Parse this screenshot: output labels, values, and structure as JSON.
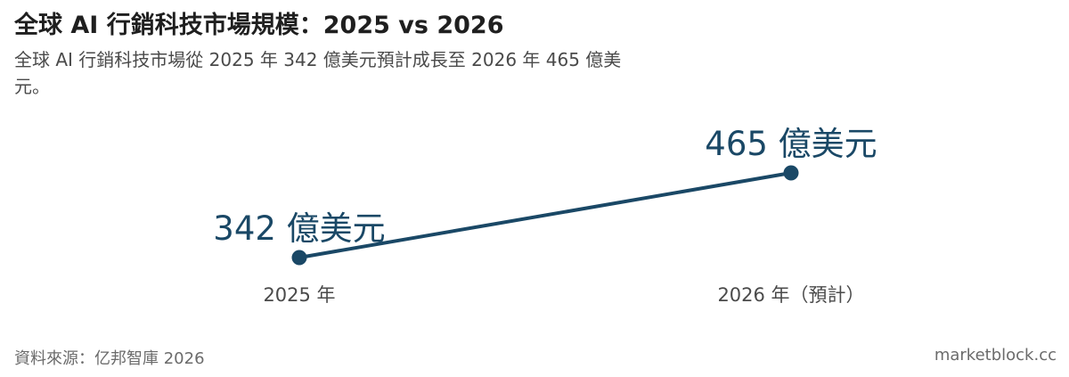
{
  "header": {
    "title": "全球 AI 行銷科技市場規模：2025 vs 2026",
    "subtitle": "全球 AI 行銷科技市場從 2025 年 342 億美元預計成長至 2026 年 465 億美元。"
  },
  "footer": {
    "source": "資料來源：亿邦智庫 2026",
    "brand": "marketblock.cc"
  },
  "colors": {
    "line": "#1a4866",
    "label": "#1a4866",
    "tick": "#4a4a4a"
  },
  "chart_data": {
    "type": "line",
    "title": "全球 AI 行銷科技市場規模：2025 vs 2026",
    "categories": [
      "2025 年",
      "2026 年（預計）"
    ],
    "series": [
      {
        "values": [
          342,
          465
        ],
        "labels": [
          "342 億美元",
          "465 億美元"
        ]
      }
    ],
    "xlabel": "",
    "ylabel": "",
    "grid": false,
    "legend": "none"
  }
}
